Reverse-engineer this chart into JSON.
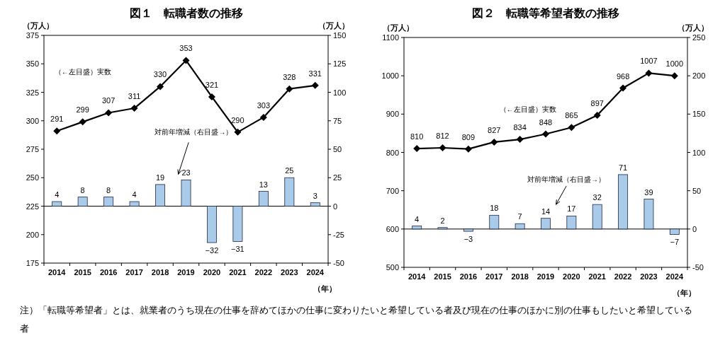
{
  "chart_data": [
    {
      "type": "bar",
      "title": "図１　転職者数の推移",
      "ylabel": "（万人）",
      "y2label": "（万人）",
      "xlabel": "（年）",
      "categories": [
        "2014",
        "2015",
        "2016",
        "2017",
        "2018",
        "2019",
        "2020",
        "2021",
        "2022",
        "2023",
        "2024"
      ],
      "series": [
        {
          "axis": "y2",
          "color": "#a9cbe9",
          "values": [
            4,
            8,
            8,
            4,
            19,
            23,
            -32,
            -31,
            13,
            25,
            3
          ]
        },
        {
          "type": "line",
          "color": "#000000",
          "values": [
            291,
            299,
            307,
            311,
            330,
            353,
            321,
            290,
            303,
            328,
            331
          ]
        }
      ],
      "ylim": [
        175,
        375
      ],
      "yticks": [
        175,
        200,
        225,
        250,
        275,
        300,
        325,
        350,
        375
      ],
      "y2lim": [
        -50,
        150
      ],
      "y2ticks": [
        -50,
        -25,
        0,
        25,
        50,
        75,
        100,
        125,
        150
      ],
      "marker": "diamond",
      "data_labels": true,
      "annotations": [
        "（←左目盛）実数",
        "対前年増減（右目盛→）"
      ]
    },
    {
      "type": "bar",
      "title": "図２　転職等希望者数の推移",
      "ylabel": "（万人）",
      "y2label": "（万人）",
      "xlabel": "（年）",
      "categories": [
        "2014",
        "2015",
        "2016",
        "2017",
        "2018",
        "2019",
        "2020",
        "2021",
        "2022",
        "2023",
        "2024"
      ],
      "series": [
        {
          "axis": "y2",
          "color": "#a9cbe9",
          "values": [
            4,
            2,
            -3,
            18,
            7,
            14,
            17,
            32,
            71,
            39,
            -7
          ]
        },
        {
          "type": "line",
          "color": "#000000",
          "values": [
            810,
            812,
            809,
            827,
            834,
            848,
            865,
            897,
            968,
            1007,
            1000
          ]
        }
      ],
      "ylim": [
        500,
        1100
      ],
      "yticks": [
        500,
        600,
        700,
        800,
        900,
        1000,
        1100
      ],
      "y2lim": [
        -50,
        250
      ],
      "y2ticks": [
        -50,
        0,
        50,
        100,
        150,
        200,
        250
      ],
      "marker": "diamond",
      "data_labels": true,
      "annotations": [
        "（←左目盛）実数",
        "対前年増減（右目盛→）",
        "注）「転職等希望者」とは、就業者のうち現在の仕事を辞めてほかの仕事に変わりたいと希望している者及び現在の仕事のほかに別の仕事もしたいと希望している者"
      ]
    }
  ]
}
